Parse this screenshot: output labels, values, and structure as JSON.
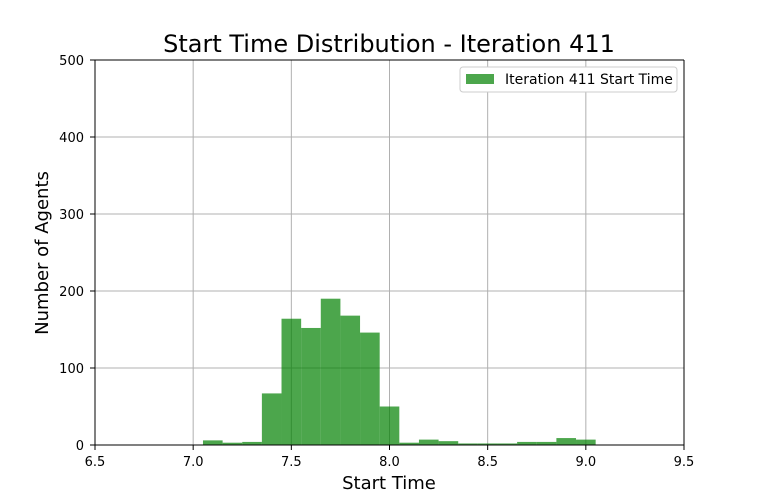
{
  "chart_data": {
    "type": "bar",
    "title": "Start Time Distribution - Iteration 411",
    "xlabel": "Start Time",
    "ylabel": "Number of Agents",
    "xlim": [
      6.5,
      9.5
    ],
    "ylim": [
      0,
      500
    ],
    "xticks": [
      "6.5",
      "7.0",
      "7.5",
      "8.0",
      "8.5",
      "9.0",
      "9.5"
    ],
    "yticks": [
      "0",
      "100",
      "200",
      "300",
      "400",
      "500"
    ],
    "grid": true,
    "legend_position": "top-right",
    "series": [
      {
        "name": "Iteration 411 Start Time",
        "color": "#008000",
        "bins": [
          {
            "x0": 7.05,
            "x1": 7.15,
            "value": 6
          },
          {
            "x0": 7.15,
            "x1": 7.25,
            "value": 3
          },
          {
            "x0": 7.25,
            "x1": 7.35,
            "value": 4
          },
          {
            "x0": 7.35,
            "x1": 7.45,
            "value": 67
          },
          {
            "x0": 7.45,
            "x1": 7.55,
            "value": 164
          },
          {
            "x0": 7.55,
            "x1": 7.65,
            "value": 152
          },
          {
            "x0": 7.65,
            "x1": 7.75,
            "value": 190
          },
          {
            "x0": 7.75,
            "x1": 7.85,
            "value": 168
          },
          {
            "x0": 7.85,
            "x1": 7.95,
            "value": 146
          },
          {
            "x0": 7.95,
            "x1": 8.05,
            "value": 50
          },
          {
            "x0": 8.05,
            "x1": 8.15,
            "value": 3
          },
          {
            "x0": 8.15,
            "x1": 8.25,
            "value": 7
          },
          {
            "x0": 8.25,
            "x1": 8.35,
            "value": 5
          },
          {
            "x0": 8.35,
            "x1": 8.45,
            "value": 2
          },
          {
            "x0": 8.45,
            "x1": 8.55,
            "value": 2
          },
          {
            "x0": 8.55,
            "x1": 8.65,
            "value": 2
          },
          {
            "x0": 8.65,
            "x1": 8.75,
            "value": 4
          },
          {
            "x0": 8.75,
            "x1": 8.85,
            "value": 4
          },
          {
            "x0": 8.85,
            "x1": 8.95,
            "value": 9
          },
          {
            "x0": 8.95,
            "x1": 9.05,
            "value": 7
          }
        ]
      }
    ]
  }
}
